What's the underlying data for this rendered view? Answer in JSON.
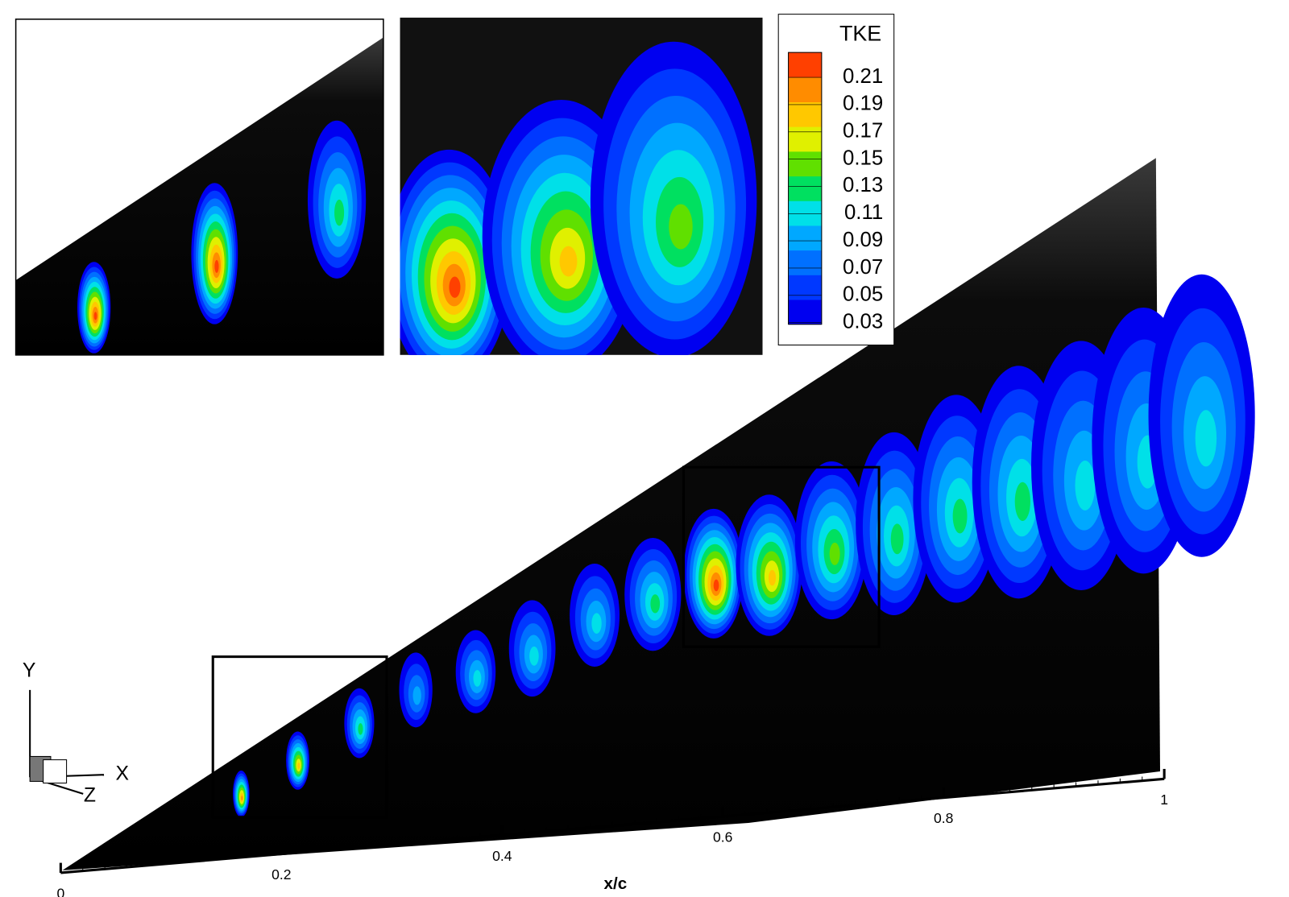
{
  "legend": {
    "title": "TKE",
    "levels": [
      0.21,
      0.19,
      0.17,
      0.15,
      0.13,
      0.11,
      0.09,
      0.07,
      0.05,
      0.03
    ],
    "colors": [
      "#0000f0",
      "#0038ff",
      "#0070ff",
      "#00a8ff",
      "#00e0e8",
      "#00e060",
      "#60e000",
      "#e0f000",
      "#ffc800",
      "#ff8c00",
      "#ff4000"
    ]
  },
  "x_axis": {
    "label": "x/c",
    "ticks": [
      0,
      0.2,
      0.4,
      0.6,
      0.8,
      1
    ]
  },
  "triad": {
    "y": "Y",
    "x": "X",
    "z": "Z"
  }
}
